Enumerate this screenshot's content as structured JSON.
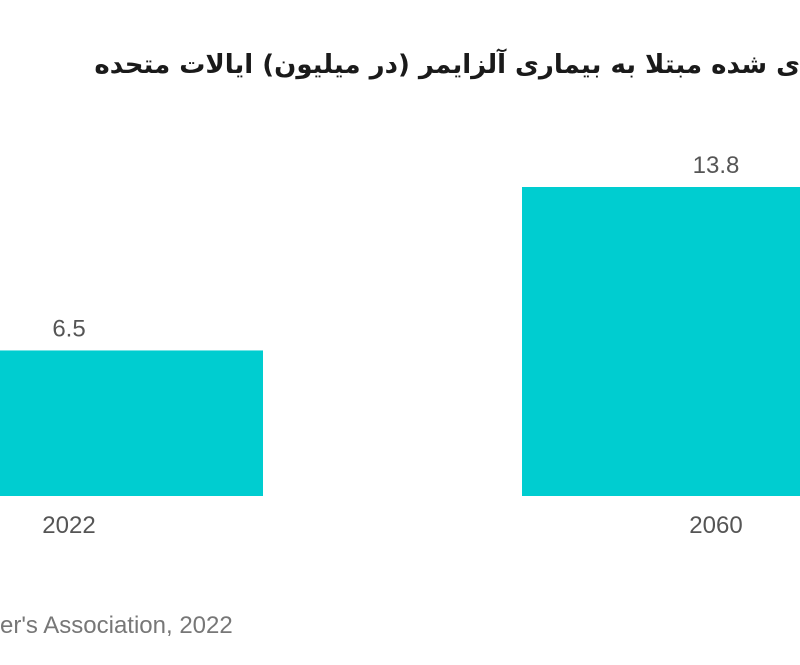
{
  "title": "ی شده مبتلا به بیماری آلزایمر (در میلیون) ایالات متحده",
  "source": "er's Association, 2022",
  "colors": {
    "bar": "#00cdd0",
    "label": "#555555",
    "source": "#777777"
  },
  "chart_data": {
    "type": "bar",
    "categories": [
      "2022",
      "2060"
    ],
    "values": [
      6.5,
      13.8
    ],
    "title": "ی شده مبتلا به بیماری آلزایمر (در میلیون) ایالات متحده",
    "xlabel": "",
    "ylabel": "",
    "ylim": [
      0,
      13.8
    ],
    "grid": false,
    "legend": "none"
  }
}
